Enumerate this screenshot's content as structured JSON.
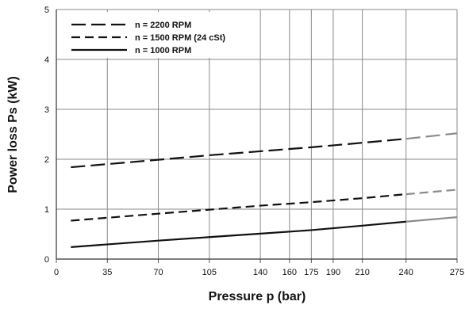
{
  "chart_data": {
    "type": "line",
    "title": "",
    "xlabel": "Pressure p (bar)",
    "ylabel": "Power loss Ps (kW)",
    "xlim": [
      0,
      275
    ],
    "ylim": [
      0,
      5
    ],
    "x_ticks": [
      0,
      35,
      70,
      105,
      140,
      160,
      175,
      190,
      210,
      240,
      275
    ],
    "y_ticks": [
      0,
      1,
      2,
      3,
      4,
      5
    ],
    "grid": true,
    "legend": {
      "placement": "top-left",
      "entries": [
        "n = 2200 RPM",
        "n = 1500 RPM  (24 cSt)",
        "n = 1000 RPM"
      ]
    },
    "series": [
      {
        "name": "n = 2200 RPM",
        "dash": "long-dash",
        "color": "#111111",
        "extrapolated_color": "#8c8c8c",
        "x": [
          10,
          70,
          105,
          140,
          175,
          210,
          240
        ],
        "values": [
          1.84,
          1.99,
          2.08,
          2.16,
          2.24,
          2.33,
          2.41
        ],
        "extrapolated": {
          "x": [
            240,
            275
          ],
          "values": [
            2.41,
            2.52
          ]
        }
      },
      {
        "name": "n = 1500 RPM  (24 cSt)",
        "dash": "short-dash",
        "color": "#111111",
        "extrapolated_color": "#8c8c8c",
        "x": [
          10,
          70,
          105,
          140,
          175,
          210,
          240
        ],
        "values": [
          0.77,
          0.91,
          0.99,
          1.07,
          1.14,
          1.22,
          1.3
        ],
        "extrapolated": {
          "x": [
            240,
            275
          ],
          "values": [
            1.3,
            1.39
          ]
        }
      },
      {
        "name": "n = 1000 RPM",
        "dash": "solid",
        "color": "#111111",
        "extrapolated_color": "#8c8c8c",
        "x": [
          10,
          70,
          105,
          140,
          175,
          210,
          240
        ],
        "values": [
          0.24,
          0.37,
          0.44,
          0.51,
          0.58,
          0.67,
          0.75
        ],
        "extrapolated": {
          "x": [
            240,
            275
          ],
          "values": [
            0.75,
            0.84
          ]
        }
      }
    ]
  }
}
